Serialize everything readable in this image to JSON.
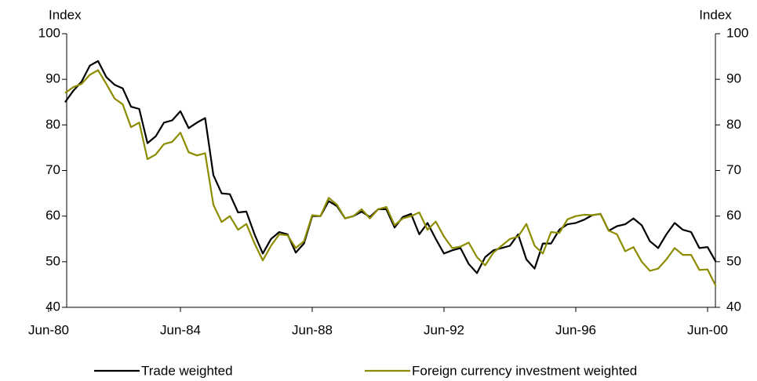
{
  "chart_data": {
    "type": "line",
    "y_axis_label": "Index",
    "categories": [
      "Jun-80",
      null,
      null,
      null,
      null,
      null,
      null,
      null,
      null,
      null,
      null,
      null,
      null,
      null,
      null,
      null,
      "Jun-84",
      null,
      null,
      null,
      null,
      null,
      null,
      null,
      null,
      null,
      null,
      null,
      null,
      null,
      null,
      null,
      "Jun-88",
      null,
      null,
      null,
      null,
      null,
      null,
      null,
      null,
      null,
      null,
      null,
      null,
      null,
      null,
      null,
      "Jun-92",
      null,
      null,
      null,
      null,
      null,
      null,
      null,
      null,
      null,
      null,
      null,
      null,
      null,
      null,
      null,
      "Jun-96",
      null,
      null,
      null,
      null,
      null,
      null,
      null,
      null,
      null,
      null,
      null,
      null,
      null,
      null,
      null,
      "Jun-00",
      null
    ],
    "series": [
      {
        "name": "Trade weighted",
        "color": "#000000",
        "values": [
          null,
          null,
          85,
          87.5,
          89.5,
          93,
          94,
          90.5,
          88.8,
          88,
          84,
          83.5,
          76,
          77.5,
          80.5,
          81,
          83,
          79.3,
          80.5,
          81.5,
          69,
          65,
          64.8,
          60.8,
          61,
          56,
          51.8,
          55,
          56.5,
          56,
          52,
          54,
          60,
          60,
          63.3,
          62.2,
          59.5,
          60,
          61,
          59.8,
          61.5,
          61.5,
          57.5,
          59.8,
          60.5,
          56,
          58.5,
          55,
          51.8,
          52.5,
          53,
          49.5,
          47.5,
          51,
          52.5,
          53,
          53.5,
          56,
          50.5,
          48.5,
          54,
          54,
          57,
          58.2,
          58.5,
          59.2,
          60.2,
          60.5,
          56.8,
          57.8,
          58.2,
          59.5,
          58,
          54.5,
          53,
          56,
          58.5,
          57,
          56.5,
          53,
          53.2,
          50
        ]
      },
      {
        "name": "Foreign currency investment weighted",
        "color": "#8c8c00",
        "values": [
          null,
          null,
          87,
          88.3,
          89,
          91,
          92,
          89,
          85.8,
          84.5,
          79.5,
          80.5,
          72.5,
          73.5,
          75.8,
          76.3,
          78.3,
          74,
          73.3,
          73.8,
          62.5,
          58.7,
          60,
          57,
          58.3,
          54,
          50.3,
          53.5,
          56,
          55.8,
          53,
          54.5,
          60.2,
          60,
          64,
          62.5,
          59.5,
          60,
          61.5,
          59.5,
          61.5,
          62,
          58,
          59.5,
          60,
          60.8,
          57,
          58.8,
          55.5,
          53,
          53.3,
          54.2,
          51,
          49.2,
          52,
          53.5,
          55,
          55.5,
          58.3,
          53.5,
          51.8,
          56.5,
          56.3,
          59.3,
          60,
          60.3,
          60.2,
          60.5,
          56.8,
          56,
          52.3,
          53.2,
          50,
          48,
          48.5,
          50.5,
          53,
          51.5,
          51.5,
          48.2,
          48.3,
          44.7
        ]
      }
    ],
    "ylim": [
      40,
      100
    ],
    "yticks": [
      40,
      50,
      60,
      70,
      80,
      90,
      100
    ],
    "legend": "bottom"
  }
}
